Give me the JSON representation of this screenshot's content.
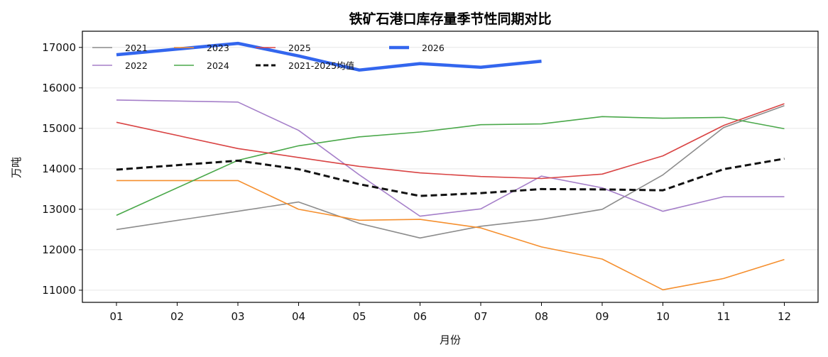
{
  "chart_data": {
    "type": "line",
    "title": "铁矿石港口库存量季节性同期对比",
    "xlabel": "月份",
    "ylabel": "万吨",
    "categories": [
      "01",
      "02",
      "03",
      "04",
      "05",
      "06",
      "07",
      "08",
      "09",
      "10",
      "11",
      "12"
    ],
    "ylim": [
      10700,
      17400
    ],
    "yticks": [
      11000,
      12000,
      13000,
      14000,
      15000,
      16000,
      17000
    ],
    "grid": "horizontal",
    "legend_position": "top-left",
    "series": [
      {
        "name": "2021",
        "color": "#8c8c8c",
        "style": "solid",
        "weight": "thin",
        "values": [
          12500,
          null,
          12950,
          13180,
          12650,
          12290,
          12580,
          12750,
          13000,
          13850,
          15020,
          15560
        ]
      },
      {
        "name": "2022",
        "color": "#a57fc9",
        "style": "solid",
        "weight": "thin",
        "values": [
          15700,
          null,
          15650,
          14950,
          13850,
          12830,
          13010,
          13820,
          13530,
          12950,
          13310,
          13310
        ]
      },
      {
        "name": "2023",
        "color": "#f58f2e",
        "style": "solid",
        "weight": "thin",
        "values": [
          13710,
          null,
          13710,
          13000,
          12730,
          12750,
          12540,
          12070,
          11770,
          11010,
          11290,
          11760
        ]
      },
      {
        "name": "2024",
        "color": "#4aa84a",
        "style": "solid",
        "weight": "thin",
        "values": [
          12850,
          null,
          14210,
          14570,
          14790,
          14910,
          15090,
          15110,
          15290,
          15250,
          15270,
          14990
        ]
      },
      {
        "name": "2025",
        "color": "#d94444",
        "style": "solid",
        "weight": "thin",
        "values": [
          15150,
          null,
          14500,
          14280,
          14060,
          13900,
          13810,
          13760,
          13870,
          14320,
          15070,
          15610
        ]
      },
      {
        "name": "2026",
        "color": "#3366ee",
        "style": "solid",
        "weight": "thick",
        "values": [
          16820,
          null,
          17100,
          16790,
          16440,
          16600,
          16510,
          16660,
          null,
          null,
          null,
          null
        ]
      },
      {
        "name": "2021-2025均值",
        "color": "#111111",
        "style": "dashed",
        "weight": "medium",
        "values": [
          13980,
          null,
          14200,
          13990,
          13620,
          13330,
          13400,
          13500,
          13490,
          13470,
          13990,
          14250
        ]
      }
    ]
  }
}
